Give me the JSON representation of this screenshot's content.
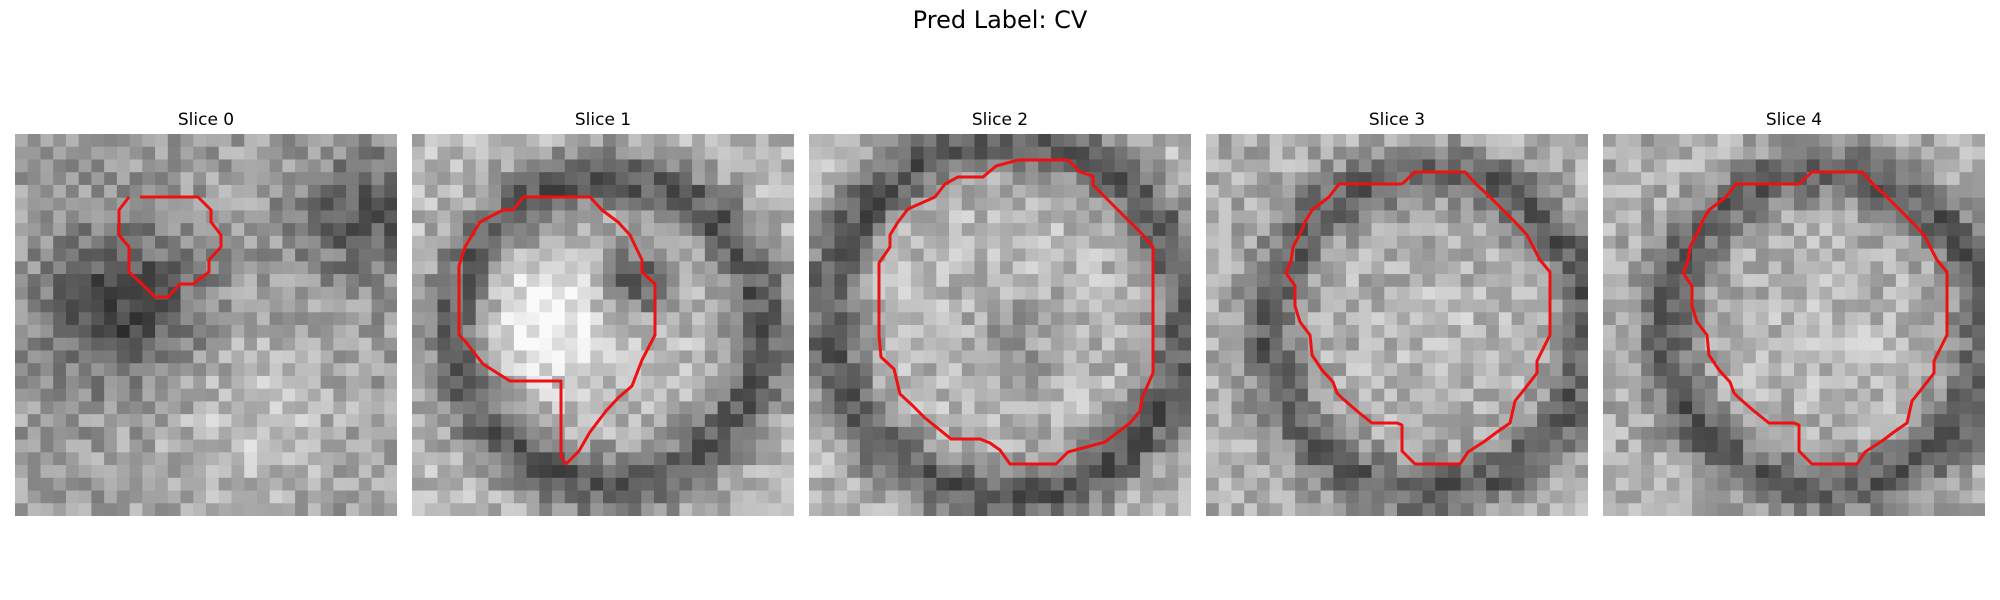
{
  "figure": {
    "title": "Pred Label: CV",
    "contour_color": "#ee1111"
  },
  "slices": [
    {
      "title": "Slice 0"
    },
    {
      "title": "Slice 1"
    },
    {
      "title": "Slice 2"
    },
    {
      "title": "Slice 3"
    },
    {
      "title": "Slice 4"
    }
  ]
}
